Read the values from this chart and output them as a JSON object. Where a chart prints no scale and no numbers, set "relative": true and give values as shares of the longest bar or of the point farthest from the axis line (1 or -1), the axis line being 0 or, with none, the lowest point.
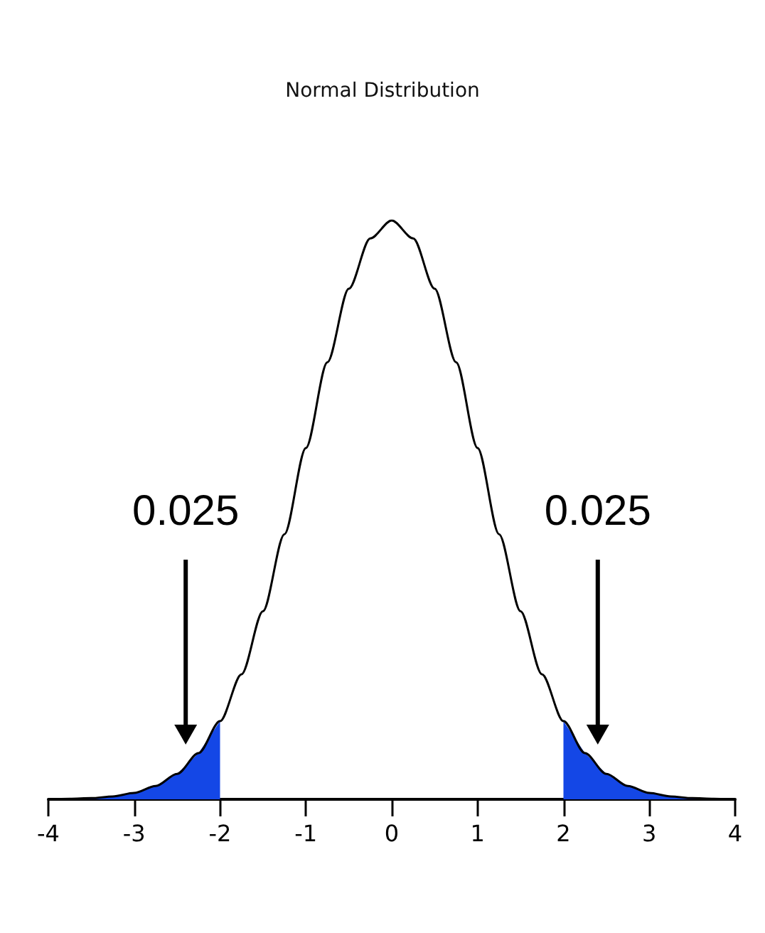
{
  "chart_data": {
    "type": "line",
    "title": "Normal Distribution",
    "relative": true,
    "marker": "none",
    "grid": false,
    "xlim": [
      -4,
      4
    ],
    "xticks": [
      -4,
      -3,
      -2,
      -1,
      0,
      1,
      2,
      3,
      4
    ],
    "series": [
      {
        "type": "area",
        "color": "#1447e6",
        "x": [
          -4,
          -3.75,
          -3.5,
          -3.25,
          -3,
          -2.75,
          -2.5,
          -2.25,
          -2
        ],
        "values": [
          0.0,
          0.001,
          0.002,
          0.005,
          0.011,
          0.023,
          0.044,
          0.08,
          0.135
        ]
      },
      {
        "type": "area",
        "color": "#1447e6",
        "x": [
          2,
          2.25,
          2.5,
          2.75,
          3,
          3.25,
          3.5,
          3.75,
          4
        ],
        "values": [
          0.135,
          0.08,
          0.044,
          0.023,
          0.011,
          0.005,
          0.002,
          0.001,
          0.0
        ]
      },
      {
        "color": "#000000",
        "x": [
          -4,
          -3.75,
          -3.5,
          -3.25,
          -3,
          -2.75,
          -2.5,
          -2.25,
          -2,
          -1.75,
          -1.5,
          -1.25,
          -1,
          -0.75,
          -0.5,
          -0.25,
          0,
          0.25,
          0.5,
          0.75,
          1,
          1.25,
          1.5,
          1.75,
          2,
          2.25,
          2.5,
          2.75,
          3,
          3.25,
          3.5,
          3.75,
          4
        ],
        "values": [
          0.0,
          0.001,
          0.002,
          0.005,
          0.011,
          0.023,
          0.044,
          0.08,
          0.135,
          0.216,
          0.325,
          0.458,
          0.607,
          0.755,
          0.882,
          0.969,
          1,
          0.969,
          0.882,
          0.755,
          0.607,
          0.458,
          0.325,
          0.216,
          0.135,
          0.08,
          0.044,
          0.023,
          0.011,
          0.005,
          0.002,
          0.001,
          0.0
        ]
      }
    ],
    "annotations": [
      "0.025",
      "0.025"
    ]
  }
}
